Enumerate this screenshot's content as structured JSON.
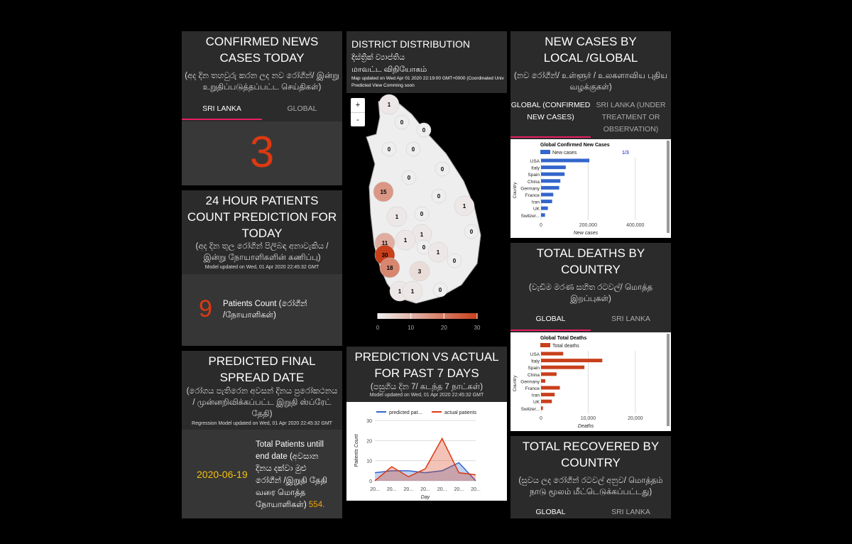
{
  "confirmed_today": {
    "title": "CONFIRMED NEWS CASES TODAY",
    "subtitle": "(අද දින තහවුරු කරන ලද නව රෝගීන්/ இன்று உறுதிப்படுத்தப்பட்ட செய்திகள்)",
    "tabs": [
      "SRI LANKA",
      "GLOBAL"
    ],
    "value": 3
  },
  "prediction_today": {
    "title": "24 HOUR PATIENTS COUNT PREDICTION FOR TODAY",
    "subtitle": "(අද දින තුල රෝගීන් පිලිබඳ අනාවැකිය / இன்று நோயாளிகளின் கணிப்பு)",
    "note": "Model updated on Wed, 01 Apr 2020 22:45:32 GMT",
    "value": 9,
    "label": "Patients Count (රෝගීන් /நோயாளிகள்)"
  },
  "final_spread": {
    "title": "PREDICTED FINAL SPREAD DATE",
    "subtitle": "(රෝගය පැතිරෙන අවසන් දිනය පුරෝකථනය / முன்னறிவிக்கப்பட்ட இறுதி ஸ்ப்ரேட் தேதி)",
    "note": "Regression Model updated on Wed, 01 Apr 2020 22:45:32 GMT",
    "date": "2020-06-19",
    "label": "Total Patients untill end date (අවසාන දිනය දක්වා මුළු රෝගීන් /இறுதி தேதி வரை மொத்த நோயாளிகள்)",
    "total": "554."
  },
  "district": {
    "title": "DISTRICT DISTRIBUTION",
    "subtitle_si": "දිස්ත්‍රික් ව්‍යාප්තිය",
    "subtitle_ta": "மாவட்ட விநியோகம்",
    "note": "Map updated on Wed Apr 01 2020 22:19:00 GMT+0000 (Coordinated Univ",
    "note2": "Predicted View Comming soon",
    "zoom": [
      "+",
      "-"
    ],
    "map": {
      "type": "choropleth",
      "values": [
        1,
        0,
        0,
        0,
        0,
        0,
        0,
        15,
        0,
        1,
        1,
        0,
        1,
        0,
        11,
        1,
        0,
        1,
        30,
        0,
        18,
        3,
        1,
        1,
        0
      ],
      "low_color": "#eeeeee",
      "high_color": "#c8401c",
      "colorbar_lim": [
        0,
        30
      ],
      "colorbar_ticks": [
        0,
        10,
        20,
        30
      ]
    }
  },
  "past7": {
    "title": "PREDICTION VS ACTUAL FOR PAST 7 DAYS",
    "subtitle": "(පසුගිය දින 7/ கடந்த 7 நாட்கள்)",
    "note": "Model updated on Wed, 01 Apr 2020 22:45:32 GMT",
    "chart": {
      "type": "area",
      "categories": [
        "20...",
        "20...",
        "20...",
        "20...",
        "20...",
        "20...",
        "20..."
      ],
      "series": [
        {
          "name": "predicted pat...",
          "color": "#3366cc",
          "values": [
            4,
            5,
            5,
            4,
            5,
            9,
            0
          ]
        },
        {
          "name": "actual patients",
          "color": "#dc3912",
          "values": [
            0,
            7,
            2,
            6,
            21,
            4,
            3
          ]
        }
      ],
      "ylim": [
        0,
        30
      ],
      "yticks": [
        0,
        10,
        20,
        30
      ],
      "ylabel": "Patients Count",
      "xlabel": "Day",
      "grid": true
    }
  },
  "local_global": {
    "title": "NEW CASES BY LOCAL /GLOBAL",
    "subtitle": "(නව රෝගීන්/ உள்ளூர் / உலகளாவிய புதிய வழக்குகள்)",
    "tabs": [
      "GLOBAL (CONFIRMED NEW CASES)",
      "SRI LANKA (UNDER TREATMENT OR OBSERVATION)"
    ],
    "chart": {
      "type": "bar",
      "title": "Global Confirmed New Cases",
      "pager": "1/3",
      "categories": [
        "USA",
        "Italy",
        "Spain",
        "China",
        "Germany",
        "France",
        "Iran",
        "UK",
        "Switzer..."
      ],
      "series": [
        {
          "name": "New cases",
          "color": "#3366cc",
          "values": [
            205000,
            105000,
            100000,
            82000,
            77000,
            52000,
            47000,
            29000,
            17000
          ]
        }
      ],
      "xlim": [
        0,
        500000
      ],
      "xticks": [
        0,
        {
          "value": 200000,
          "label": "200,000"
        },
        {
          "value": 400000,
          "label": "400,000"
        }
      ],
      "xlabel": "New cases",
      "ylabel": "Country"
    }
  },
  "deaths": {
    "title": "TOTAL DEATHS BY COUNTRY",
    "subtitle": "(වැඩිම මරණ සහිත රටවල්/ மொத்த இறப்புகள்)",
    "tabs": [
      "GLOBAL",
      "SRI LANKA"
    ],
    "chart": {
      "type": "bar",
      "title": "Global Total Deaths",
      "categories": [
        "USA",
        "Italy",
        "Spain",
        "China",
        "Germany",
        "France",
        "Iran",
        "UK",
        "Switzer..."
      ],
      "series": [
        {
          "name": "Total deaths",
          "color": "#c8401c",
          "values": [
            4700,
            13000,
            9200,
            3300,
            900,
            4000,
            2900,
            2300,
            400
          ]
        }
      ],
      "xlim": [
        0,
        25000
      ],
      "xticks": [
        0,
        {
          "value": 10000,
          "label": "10,000"
        },
        {
          "value": 20000,
          "label": "20,000"
        }
      ],
      "xlabel": "Deaths",
      "ylabel": "Country"
    }
  },
  "recovered": {
    "title": "TOTAL RECOVERED BY COUNTRY",
    "subtitle": "(සුවය ලද රෝගීන් රටවල් අනුව/ மொத்தம் நாடு மூலம் மீட்டெடுக்கப்பட்டது)",
    "tabs": [
      "GLOBAL",
      "SRI LANKA"
    ]
  }
}
